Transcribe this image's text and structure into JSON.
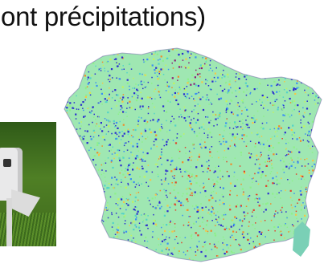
{
  "title": "lont précipitations)",
  "photo": {
    "credit": ""
  },
  "colors": {
    "palette": [
      "#2a2bd0",
      "#3b8ff3",
      "#52d3c8",
      "#8ef08a",
      "#c4f35a",
      "#f6c646",
      "#f08a2a",
      "#e0442c",
      "#8b1d74"
    ]
  }
}
